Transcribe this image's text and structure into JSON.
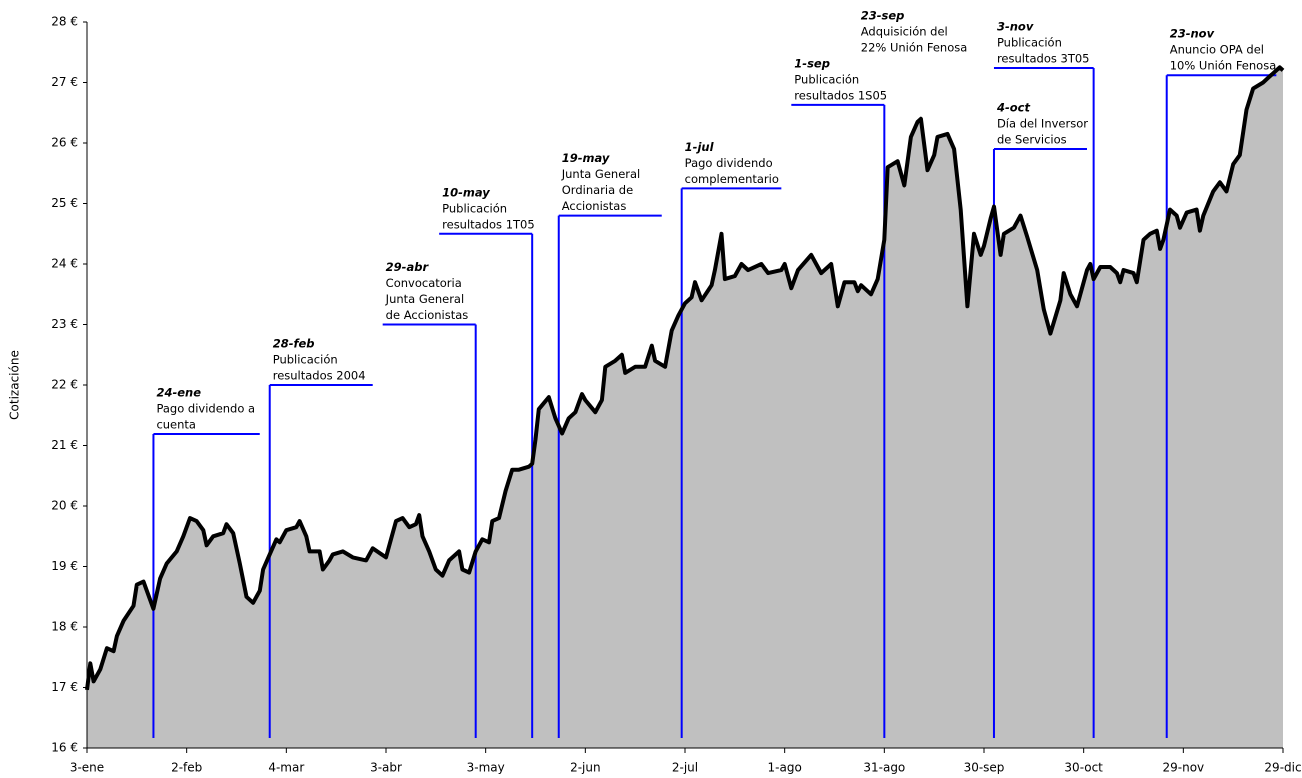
{
  "chart_data": {
    "type": "area",
    "y_label": "Cotizacióne",
    "color": "#000000",
    "fill": "#c0c0c0",
    "annotation_color": "#0000ff",
    "xlim": [
      0,
      360
    ],
    "xticks": [
      {
        "value": 0,
        "label": "3-ene"
      },
      {
        "value": 30,
        "label": "2-feb"
      },
      {
        "value": 60,
        "label": "4-mar"
      },
      {
        "value": 90,
        "label": "3-abr"
      },
      {
        "value": 120,
        "label": "3-may"
      },
      {
        "value": 150,
        "label": "2-jun"
      },
      {
        "value": 180,
        "label": "2-jul"
      },
      {
        "value": 210,
        "label": "1-ago"
      },
      {
        "value": 240,
        "label": "31-ago"
      },
      {
        "value": 270,
        "label": "30-sep"
      },
      {
        "value": 300,
        "label": "30-oct"
      },
      {
        "value": 330,
        "label": "29-nov"
      },
      {
        "value": 360,
        "label": "29-dic"
      }
    ],
    "ylim": [
      16,
      28
    ],
    "yticks": [
      {
        "value": 16,
        "label": "16 €"
      },
      {
        "value": 17,
        "label": "17 €"
      },
      {
        "value": 18,
        "label": "18 €"
      },
      {
        "value": 19,
        "label": "19 €"
      },
      {
        "value": 20,
        "label": "20 €"
      },
      {
        "value": 21,
        "label": "21 €"
      },
      {
        "value": 22,
        "label": "22 €"
      },
      {
        "value": 23,
        "label": "23 €"
      },
      {
        "value": 24,
        "label": "24 €"
      },
      {
        "value": 25,
        "label": "25 €"
      },
      {
        "value": 26,
        "label": "26 €"
      },
      {
        "value": 27,
        "label": "27 €"
      },
      {
        "value": 28,
        "label": "28 €"
      }
    ],
    "x": [
      0,
      1,
      2,
      4,
      6,
      8,
      9,
      11,
      14,
      15,
      17,
      18,
      20,
      22,
      24,
      27,
      29,
      31,
      33,
      35,
      36,
      38,
      41,
      42,
      44,
      46,
      48,
      50,
      52,
      53,
      55,
      57,
      58,
      60,
      63,
      64,
      66,
      67,
      70,
      71,
      73,
      74,
      77,
      80,
      84,
      86,
      90,
      93,
      95,
      97,
      99,
      100,
      101,
      103,
      105,
      107,
      109,
      112,
      113,
      115,
      117,
      119,
      121,
      122,
      124,
      126,
      128,
      130,
      133,
      134,
      135,
      136,
      139,
      141,
      143,
      145,
      147,
      149,
      150,
      153,
      155,
      156,
      159,
      161,
      162,
      165,
      168,
      170,
      171,
      174,
      176,
      178,
      180,
      182,
      183,
      185,
      188,
      189,
      191,
      192,
      195,
      197,
      199,
      203,
      205,
      209,
      210,
      212,
      214,
      218,
      221,
      224,
      226,
      228,
      231,
      232,
      233,
      236,
      238,
      240,
      241,
      244,
      246,
      248,
      250,
      251,
      253,
      255,
      256,
      259,
      261,
      263,
      265,
      267,
      269,
      270,
      272,
      273,
      275,
      276,
      279,
      281,
      283,
      286,
      288,
      290,
      293,
      294,
      296,
      298,
      301,
      302,
      303,
      305,
      308,
      310,
      311,
      312,
      315,
      316,
      318,
      320,
      322,
      323,
      324,
      326,
      328,
      329,
      331,
      334,
      335,
      336,
      339,
      341,
      343,
      345,
      347,
      349,
      351,
      354,
      356,
      359,
      360
    ],
    "values": [
      16.96,
      17.4,
      17.1,
      17.3,
      17.65,
      17.6,
      17.85,
      18.1,
      18.35,
      18.7,
      18.75,
      18.6,
      18.3,
      18.8,
      19.05,
      19.25,
      19.5,
      19.8,
      19.75,
      19.6,
      19.35,
      19.5,
      19.55,
      19.7,
      19.55,
      19.05,
      18.5,
      18.4,
      18.6,
      18.95,
      19.2,
      19.45,
      19.4,
      19.6,
      19.65,
      19.75,
      19.5,
      19.25,
      19.25,
      18.95,
      19.1,
      19.2,
      19.25,
      19.15,
      19.1,
      19.3,
      19.15,
      19.75,
      19.8,
      19.65,
      19.7,
      19.85,
      19.5,
      19.25,
      18.95,
      18.85,
      19.1,
      19.25,
      18.95,
      18.9,
      19.25,
      19.45,
      19.4,
      19.75,
      19.8,
      20.25,
      20.6,
      20.6,
      20.65,
      20.7,
      21.1,
      21.6,
      21.8,
      21.45,
      21.2,
      21.45,
      21.55,
      21.85,
      21.75,
      21.55,
      21.75,
      22.3,
      22.4,
      22.5,
      22.2,
      22.3,
      22.3,
      22.65,
      22.4,
      22.3,
      22.9,
      23.15,
      23.35,
      23.45,
      23.7,
      23.4,
      23.65,
      23.9,
      24.5,
      23.75,
      23.8,
      24.0,
      23.9,
      24.0,
      23.85,
      23.9,
      24.0,
      23.6,
      23.9,
      24.15,
      23.85,
      24.0,
      23.3,
      23.7,
      23.7,
      23.55,
      23.65,
      23.5,
      23.75,
      24.4,
      25.6,
      25.7,
      25.3,
      26.1,
      26.35,
      26.4,
      25.55,
      25.8,
      26.1,
      26.15,
      25.9,
      24.9,
      23.3,
      24.5,
      24.15,
      24.3,
      24.75,
      24.95,
      24.15,
      24.5,
      24.6,
      24.8,
      24.45,
      23.9,
      23.25,
      22.85,
      23.4,
      23.85,
      23.5,
      23.3,
      23.9,
      24.0,
      23.75,
      23.95,
      23.95,
      23.85,
      23.7,
      23.9,
      23.85,
      23.7,
      24.4,
      24.5,
      24.55,
      24.25,
      24.4,
      24.9,
      24.8,
      24.6,
      24.85,
      24.9,
      24.55,
      24.8,
      25.2,
      25.35,
      25.2,
      25.65,
      25.8,
      26.55,
      26.9,
      27.0,
      27.1,
      27.25,
      27.2
    ],
    "annotations": [
      {
        "date": "24-ene",
        "lines": [
          "Pago dividendo a",
          "cuenta"
        ],
        "x": 20,
        "x_end": 52,
        "y": 21.19
      },
      {
        "date": "28-feb",
        "lines": [
          "Publicación",
          "resultados 2004"
        ],
        "x": 55,
        "x_end": 86,
        "y": 22.0
      },
      {
        "date": "29-abr",
        "lines": [
          "Convocatoria",
          "Junta General",
          "de Accionistas"
        ],
        "x": 117,
        "x_end": 89,
        "y": 23.0
      },
      {
        "date": "10-may",
        "lines": [
          "Publicación",
          "resultados 1T05"
        ],
        "x": 134,
        "x_end": 106,
        "y": 24.5
      },
      {
        "date": "19-may",
        "lines": [
          "Junta General",
          "Ordinaria de",
          "Accionistas"
        ],
        "x": 142,
        "x_end": 173,
        "y": 24.8
      },
      {
        "date": "1-jul",
        "lines": [
          "Pago dividendo",
          "complementario"
        ],
        "x": 179,
        "x_end": 209,
        "y": 25.25
      },
      {
        "date": "1-sep",
        "lines": [
          "Publicación",
          "resultados 1S05"
        ],
        "x": 240,
        "x_end": 212,
        "y": 26.63
      },
      {
        "date": "23-sep",
        "lines": [
          "Adquisición  del",
          "22% Unión Fenosa"
        ],
        "x": 232,
        "y": 27.42
      },
      {
        "date": "4-oct",
        "lines": [
          "Día del Inversor",
          "de Servicios"
        ],
        "x": 273,
        "x_end": 301,
        "y": 25.9
      },
      {
        "date": "3-nov",
        "lines": [
          "Publicación",
          "resultados 3T05"
        ],
        "x": 303,
        "x_end": 273,
        "y": 27.24
      },
      {
        "date": "23-nov",
        "lines": [
          "Anuncio OPA del",
          "10% Unión Fenosa"
        ],
        "x": 325,
        "x_end": 358,
        "y": 27.12
      }
    ]
  }
}
